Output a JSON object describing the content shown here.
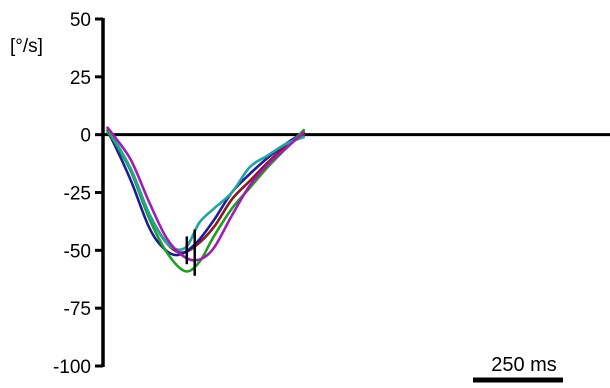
{
  "chart_data": {
    "type": "line",
    "title": "",
    "xlabel": "",
    "ylabel": "[°/s]",
    "ylim": [
      -100,
      50
    ],
    "yticks": [
      50,
      25,
      0,
      -25,
      -50,
      -75,
      -100
    ],
    "ytick_labels": [
      "50",
      "25",
      "0",
      "-25",
      "-50",
      "-75",
      "-100"
    ],
    "zero_line": true,
    "grid": false,
    "legend": "none",
    "scale_bar": {
      "label": "250 ms",
      "duration_ms": 250
    },
    "x_unit": "ms",
    "series": [
      {
        "color": "#8b1a1a",
        "points": [
          [
            -15,
            2
          ],
          [
            0,
            -2
          ],
          [
            50,
            -15
          ],
          [
            100,
            -34
          ],
          [
            150,
            -47
          ],
          [
            190,
            -51
          ],
          [
            230,
            -48
          ],
          [
            280,
            -40
          ],
          [
            330,
            -28
          ],
          [
            380,
            -20
          ],
          [
            430,
            -12
          ],
          [
            480,
            -5
          ],
          [
            530,
            0
          ]
        ]
      },
      {
        "color": "#1c1c9e",
        "points": [
          [
            -15,
            1
          ],
          [
            0,
            -3
          ],
          [
            50,
            -20
          ],
          [
            100,
            -40
          ],
          [
            140,
            -49
          ],
          [
            180,
            -52
          ],
          [
            230,
            -47
          ],
          [
            280,
            -37
          ],
          [
            330,
            -25
          ],
          [
            380,
            -17
          ],
          [
            430,
            -10
          ],
          [
            480,
            -4
          ],
          [
            530,
            1
          ]
        ]
      },
      {
        "color": "#1ea11e",
        "points": [
          [
            -15,
            1
          ],
          [
            0,
            -2
          ],
          [
            50,
            -16
          ],
          [
            100,
            -36
          ],
          [
            150,
            -51
          ],
          [
            200,
            -59
          ],
          [
            240,
            -55
          ],
          [
            280,
            -44
          ],
          [
            330,
            -32
          ],
          [
            380,
            -23
          ],
          [
            430,
            -14
          ],
          [
            480,
            -6
          ],
          [
            530,
            2
          ]
        ]
      },
      {
        "color": "#20a5a5",
        "points": [
          [
            -15,
            3
          ],
          [
            0,
            -1
          ],
          [
            50,
            -15
          ],
          [
            100,
            -34
          ],
          [
            150,
            -47
          ],
          [
            200,
            -49
          ],
          [
            240,
            -38
          ],
          [
            280,
            -32
          ],
          [
            330,
            -25
          ],
          [
            380,
            -14
          ],
          [
            430,
            -9
          ],
          [
            480,
            -4
          ],
          [
            530,
            -1
          ]
        ]
      },
      {
        "color": "#a41ab8",
        "points": [
          [
            -15,
            3
          ],
          [
            0,
            0
          ],
          [
            50,
            -11
          ],
          [
            100,
            -29
          ],
          [
            150,
            -45
          ],
          [
            200,
            -53
          ],
          [
            240,
            -54
          ],
          [
            280,
            -49
          ],
          [
            330,
            -35
          ],
          [
            380,
            -22
          ],
          [
            430,
            -13
          ],
          [
            480,
            -6
          ],
          [
            530,
            1
          ]
        ]
      }
    ],
    "markers": [
      {
        "x": 205,
        "y_from": -44,
        "y_to": -56
      },
      {
        "x": 227,
        "y_from": -41,
        "y_to": -61
      }
    ]
  }
}
